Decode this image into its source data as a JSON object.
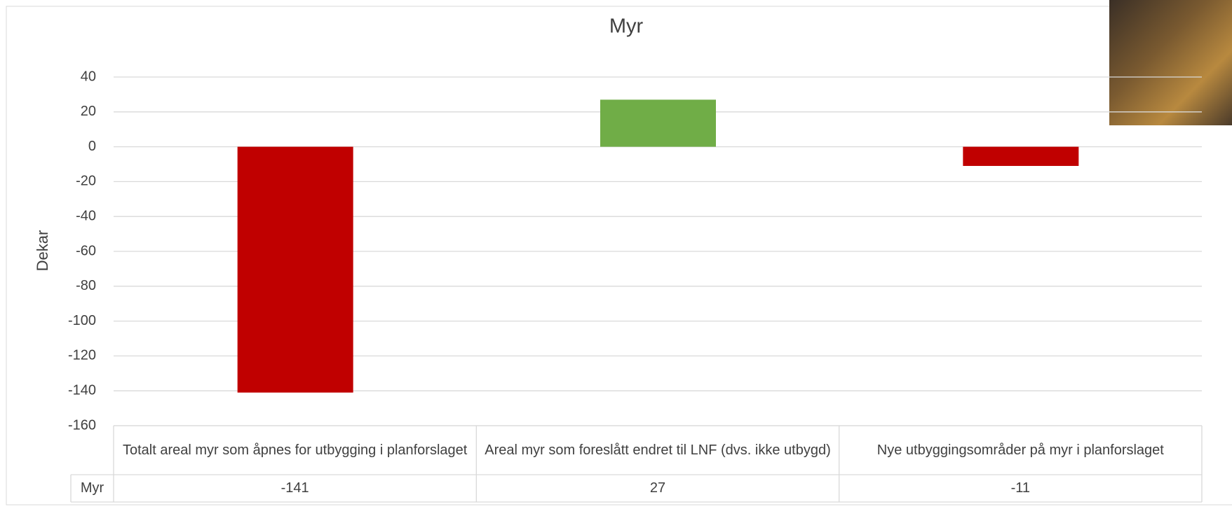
{
  "chart_data": {
    "type": "bar",
    "title": "Myr",
    "ylabel": "Dekar",
    "categories": [
      "Totalt areal myr som åpnes for utbygging i planforslaget",
      "Areal myr som foreslått endret til LNF (dvs. ikke utbygd)",
      "Nye utbyggingsområder på myr i planforslaget"
    ],
    "series": [
      {
        "name": "Myr",
        "values": [
          -141,
          27,
          -11
        ],
        "colors": [
          "#c00000",
          "#70ad47",
          "#c00000"
        ]
      }
    ],
    "ylim": [
      -160,
      40
    ],
    "yticks": [
      -160,
      -140,
      -120,
      -100,
      -80,
      -60,
      -40,
      -20,
      0,
      20,
      40
    ],
    "grid": true,
    "data_table": true
  }
}
